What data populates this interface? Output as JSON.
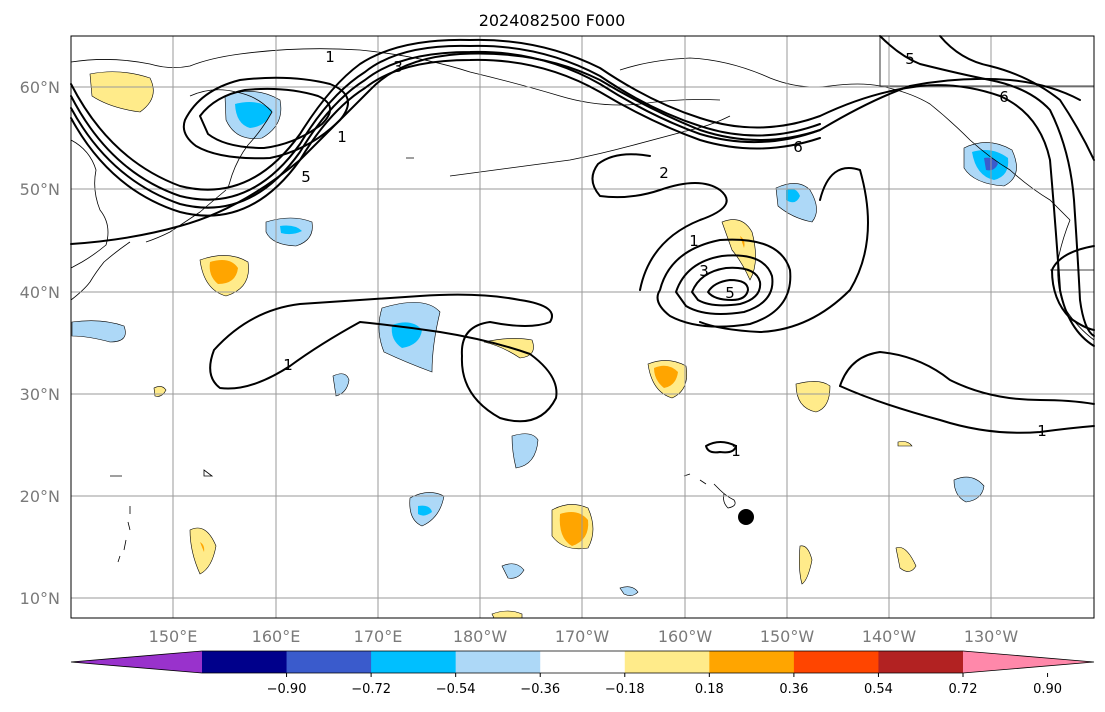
{
  "title": "2024082500 F000",
  "lat_labels": [
    "60°N",
    "50°N",
    "40°N",
    "30°N",
    "20°N",
    "10°N"
  ],
  "lon_labels": [
    "150°E",
    "160°E",
    "170°E",
    "180°W",
    "170°W",
    "160°W",
    "150°W",
    "140°W",
    "130°W"
  ],
  "colorbar": {
    "ticks": [
      "−0.90",
      "−0.72",
      "−0.54",
      "−0.36",
      "−0.18",
      "0.18",
      "0.36",
      "0.54",
      "0.72",
      "0.90"
    ],
    "colors": [
      "#9932CC",
      "#00008B",
      "#3A5BCC",
      "#00BFFF",
      "#ADD8F7",
      "#FFFFFF",
      "#FFEB8A",
      "#FFA500",
      "#FF4500",
      "#B22222",
      "#FF88AA"
    ]
  },
  "contour_labels": [
    "1",
    "3",
    "5",
    "1",
    "2",
    "6",
    "1",
    "3",
    "5",
    "6",
    "5",
    "1",
    "1",
    "1"
  ],
  "marker": "storm-center"
}
